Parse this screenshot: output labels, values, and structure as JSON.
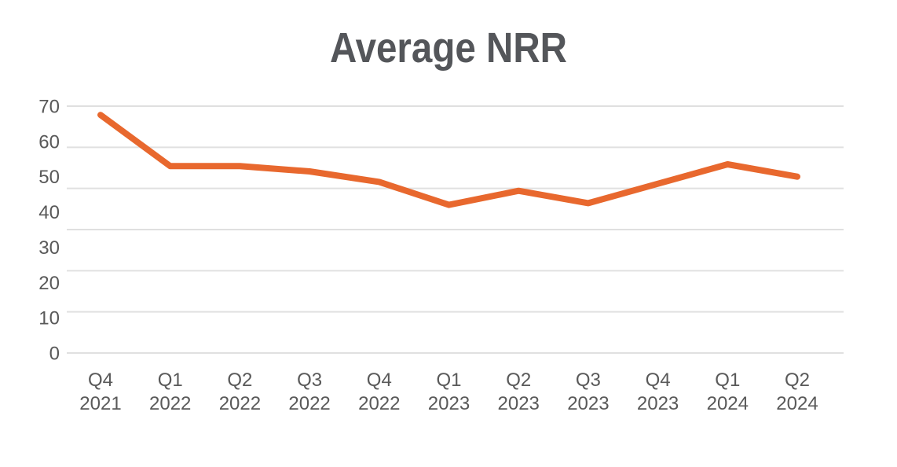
{
  "chart_data": {
    "type": "line",
    "title": "Average NRR",
    "categories": [
      [
        "Q4",
        "2021"
      ],
      [
        "Q1",
        "2022"
      ],
      [
        "Q2",
        "2022"
      ],
      [
        "Q3",
        "2022"
      ],
      [
        "Q4",
        "2022"
      ],
      [
        "Q1",
        "2023"
      ],
      [
        "Q2",
        "2023"
      ],
      [
        "Q3",
        "2023"
      ],
      [
        "Q4",
        "2023"
      ],
      [
        "Q1",
        "2024"
      ],
      [
        "Q2",
        "2024"
      ]
    ],
    "series": [
      {
        "name": "Average NRR",
        "values": [
          67.5,
          53,
          53,
          51.5,
          48.5,
          42,
          46,
          42.5,
          48,
          53.5,
          50
        ]
      }
    ],
    "xlabel": "",
    "ylabel": "",
    "ylim": [
      0,
      70
    ],
    "yticks": [
      0,
      10,
      20,
      30,
      40,
      50,
      60,
      70
    ],
    "gridline_count": 7,
    "grid": "horizontal",
    "legend": "none",
    "markers": "none",
    "colors": {
      "line": "#E8682E",
      "grid": "#E0E0E0",
      "axis_text": "#595959",
      "title_text": "#54565A",
      "background": "#FFFFFF"
    }
  }
}
